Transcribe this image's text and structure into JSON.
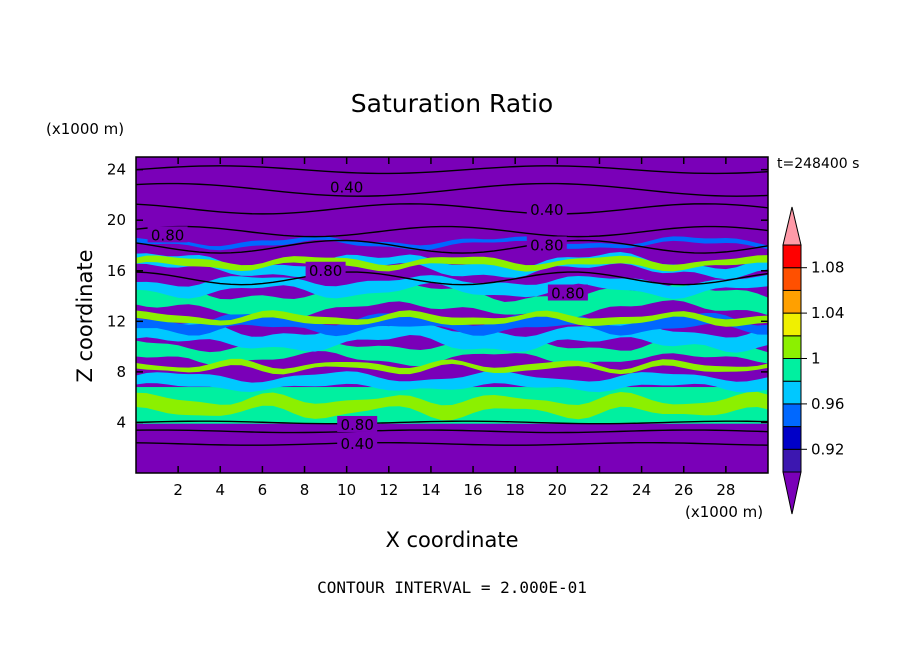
{
  "chart_data": {
    "type": "heatmap",
    "title": "Saturation Ratio",
    "xlabel": "X coordinate",
    "ylabel": "Z coordinate",
    "x_unit": "(x1000 m)",
    "y_unit": "(x1000 m)",
    "time_label": "t=248400 s",
    "footer": "CONTOUR INTERVAL = 2.000E-01",
    "xlim": [
      0,
      30
    ],
    "ylim": [
      0,
      25
    ],
    "x_ticks": [
      "2",
      "4",
      "6",
      "8",
      "10",
      "12",
      "14",
      "16",
      "18",
      "20",
      "22",
      "24",
      "26",
      "28"
    ],
    "y_ticks": [
      "4",
      "8",
      "12",
      "16",
      "20",
      "24"
    ],
    "colorbar": {
      "labels": [
        "0.92",
        "0.96",
        "1",
        "1.04",
        "1.08"
      ],
      "levels": [
        0.9,
        0.92,
        0.94,
        0.96,
        0.98,
        1.0,
        1.02,
        1.04,
        1.06,
        1.08,
        1.1
      ],
      "colors": [
        "#7a00b8",
        "#3c17b0",
        "#0000c8",
        "#0068ff",
        "#00c8ff",
        "#00f0a0",
        "#8cf000",
        "#f0f000",
        "#ffa000",
        "#ff5000",
        "#ff0000",
        "#ff9aa8"
      ]
    },
    "contour_labels": [
      {
        "text": "0.40",
        "x": 10.0,
        "z": 22.6
      },
      {
        "text": "0.40",
        "x": 19.5,
        "z": 20.8
      },
      {
        "text": "0.80",
        "x": 1.5,
        "z": 18.8
      },
      {
        "text": "0.80",
        "x": 19.5,
        "z": 18.0
      },
      {
        "text": "0.80",
        "x": 9.0,
        "z": 16.0
      },
      {
        "text": "0.80",
        "x": 20.5,
        "z": 14.2
      },
      {
        "text": "0.80",
        "x": 10.5,
        "z": 3.8
      },
      {
        "text": "0.40",
        "x": 10.5,
        "z": 2.3
      }
    ]
  }
}
